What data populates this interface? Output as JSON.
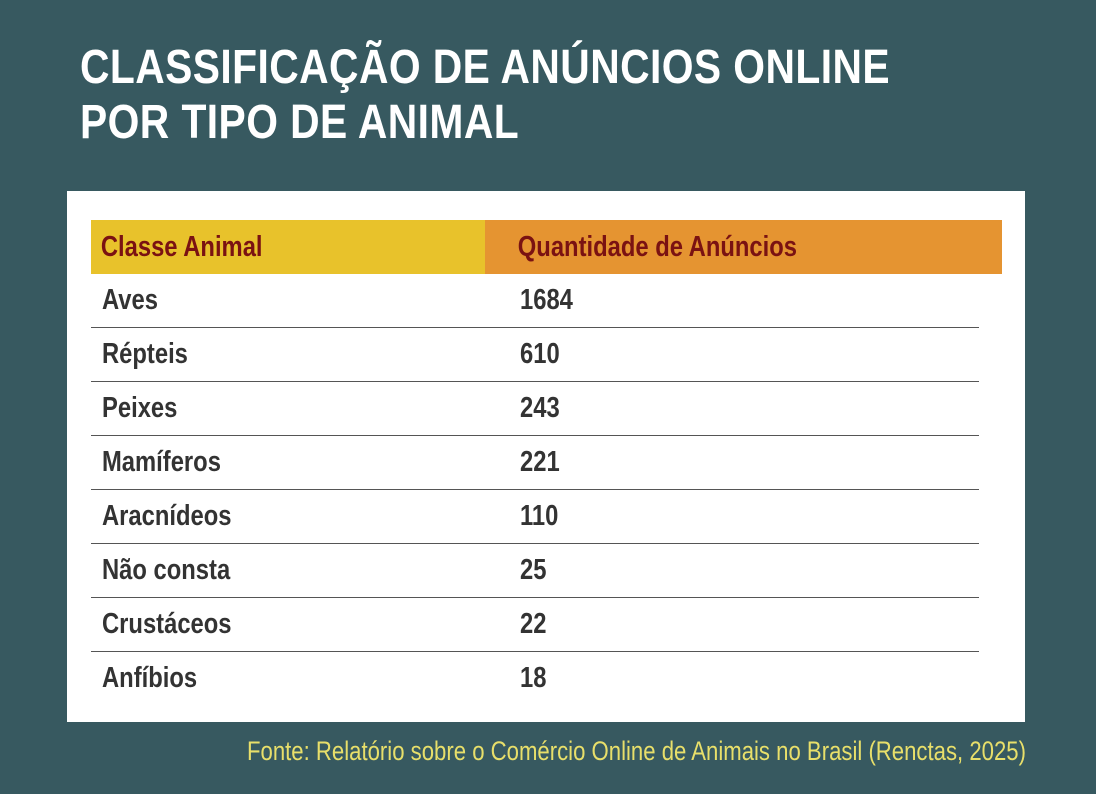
{
  "title_lines": [
    "CLASSIFICAÇÃO DE ANÚNCIOS ONLINE",
    "POR TIPO DE ANIMAL"
  ],
  "source": "Fonte: Relatório sobre o Comércio Online de Animais no Brasil (Renctas, 2025)",
  "colors": {
    "background": "#375960",
    "header_left": "#e8c22b",
    "header_right": "#e59431",
    "header_text": "#7a1212",
    "source_text": "#e8df6a"
  },
  "chart_data": {
    "type": "table",
    "columns": [
      "Classe Animal",
      "Quantidade de Anúncios"
    ],
    "rows": [
      {
        "name": "Aves",
        "value": "1684"
      },
      {
        "name": "Répteis",
        "value": "610"
      },
      {
        "name": "Peixes",
        "value": "243"
      },
      {
        "name": "Mamíferos",
        "value": "221"
      },
      {
        "name": "Aracnídeos",
        "value": "110"
      },
      {
        "name": "Não consta",
        "value": "25"
      },
      {
        "name": "Crustáceos",
        "value": "22"
      },
      {
        "name": "Anfíbios",
        "value": "18"
      }
    ]
  }
}
